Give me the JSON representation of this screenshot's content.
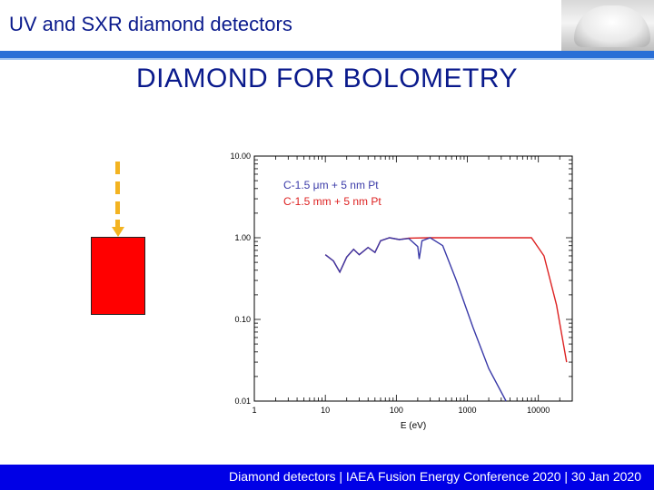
{
  "header": {
    "title": "UV and SXR diamond detectors"
  },
  "slide": {
    "title": "DIAMOND FOR BOLOMETRY"
  },
  "footer": {
    "text": "Diamond detectors | IAEA Fusion Energy Conference 2020 | 30 Jan 2020"
  },
  "colors": {
    "title_blue": "#0a1a8c",
    "header_bar": "#2a6fd6",
    "footer_bar": "#0000e6",
    "arrow": "#f3b321",
    "red_block": "#ff0000",
    "series_thin": "#3a3aa8",
    "series_thick": "#dd2222"
  },
  "chart_data": {
    "type": "line",
    "title": "",
    "xlabel": "E (eV)",
    "ylabel": "",
    "x_scale": "log",
    "y_scale": "log",
    "xlim": [
      1,
      30000
    ],
    "ylim": [
      0.01,
      10
    ],
    "x_ticks": [
      "1",
      "10",
      "100",
      "1000",
      "10000"
    ],
    "y_ticks": [
      "10.00",
      "1.00",
      "0.10",
      "0.01"
    ],
    "legend_position": "top-left",
    "series": [
      {
        "name": "C-1.5 μm + 5 nm Pt",
        "color": "#3a3aa8",
        "points": [
          [
            10,
            0.62
          ],
          [
            13,
            0.52
          ],
          [
            16,
            0.38
          ],
          [
            20,
            0.58
          ],
          [
            25,
            0.72
          ],
          [
            30,
            0.62
          ],
          [
            40,
            0.76
          ],
          [
            50,
            0.66
          ],
          [
            60,
            0.92
          ],
          [
            80,
            1.0
          ],
          [
            110,
            0.95
          ],
          [
            150,
            0.98
          ],
          [
            200,
            0.78
          ],
          [
            210,
            0.55
          ],
          [
            230,
            0.92
          ],
          [
            300,
            1.0
          ],
          [
            450,
            0.8
          ],
          [
            700,
            0.3
          ],
          [
            1200,
            0.08
          ],
          [
            2000,
            0.025
          ],
          [
            3500,
            0.01
          ]
        ]
      },
      {
        "name": "C-1.5 mm + 5 nm Pt",
        "color": "#dd2222",
        "points": [
          [
            10,
            0.62
          ],
          [
            13,
            0.52
          ],
          [
            16,
            0.38
          ],
          [
            20,
            0.58
          ],
          [
            25,
            0.72
          ],
          [
            30,
            0.62
          ],
          [
            40,
            0.76
          ],
          [
            50,
            0.66
          ],
          [
            60,
            0.92
          ],
          [
            80,
            1.0
          ],
          [
            110,
            0.95
          ],
          [
            150,
            0.99
          ],
          [
            300,
            1.0
          ],
          [
            1000,
            1.0
          ],
          [
            5000,
            1.0
          ],
          [
            8000,
            1.0
          ],
          [
            12000,
            0.6
          ],
          [
            18000,
            0.15
          ],
          [
            25000,
            0.03
          ]
        ]
      }
    ]
  }
}
